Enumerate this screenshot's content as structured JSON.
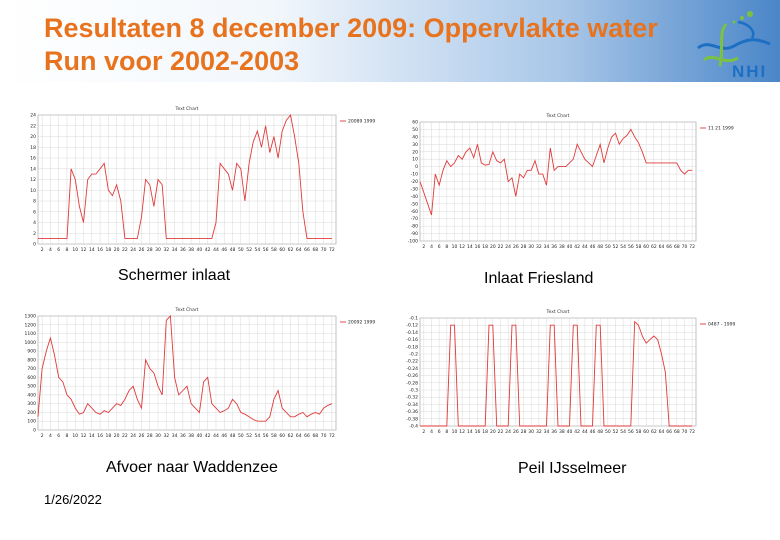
{
  "title": {
    "line1": "Resultaten 8 december 2009: Oppervlakte water",
    "line2": "Run voor 2002-2003"
  },
  "logo": {
    "text": "NHI",
    "icon": "nhi-wave-logo-icon"
  },
  "colors": {
    "title": "#e8731e",
    "series": "#e03a3a",
    "grid": "#d0d0d0",
    "logo": "#1d6fc4",
    "logo_green": "#7cc242"
  },
  "footer": {
    "date": "1/26/2022"
  },
  "chart_data": [
    {
      "id": "schermer",
      "type": "line",
      "caption": "Schermer inlaat",
      "title": "Text Chart",
      "legend": "20089 1999",
      "xlabel": "",
      "ylabel": "",
      "xlim": [
        1,
        73
      ],
      "ylim": [
        0,
        24
      ],
      "x_ticks": [
        2,
        4,
        6,
        8,
        10,
        12,
        14,
        16,
        18,
        20,
        22,
        24,
        26,
        28,
        30,
        32,
        34,
        36,
        38,
        40,
        42,
        44,
        46,
        48,
        50,
        52,
        54,
        56,
        58,
        60,
        62,
        64,
        66,
        68,
        70,
        72
      ],
      "y_ticks": [
        0,
        2,
        4,
        6,
        8,
        10,
        12,
        14,
        16,
        18,
        20,
        22,
        24
      ],
      "series": [
        {
          "name": "20089 1999",
          "x": [
            1,
            8,
            9,
            10,
            11,
            12,
            13,
            14,
            15,
            16,
            17,
            18,
            19,
            20,
            21,
            22,
            23,
            24,
            25,
            26,
            27,
            28,
            29,
            30,
            31,
            32,
            33,
            34,
            35,
            36,
            37,
            38,
            39,
            40,
            41,
            42,
            43,
            44,
            45,
            46,
            47,
            48,
            49,
            50,
            51,
            52,
            53,
            54,
            55,
            56,
            57,
            58,
            59,
            60,
            61,
            62,
            63,
            64,
            65,
            66,
            67,
            68,
            69,
            70,
            71,
            72
          ],
          "y": [
            1,
            1,
            14,
            12,
            7,
            4,
            12,
            13,
            13,
            14,
            15,
            10,
            9,
            11,
            8,
            1,
            1,
            1,
            1,
            5,
            12,
            11,
            7,
            12,
            11,
            1,
            1,
            1,
            1,
            1,
            1,
            1,
            1,
            1,
            1,
            1,
            1,
            4,
            15,
            14,
            13,
            10,
            15,
            14,
            8,
            15,
            19,
            21,
            18,
            22,
            17,
            20,
            16,
            21,
            23,
            24,
            20,
            15,
            6,
            1,
            1,
            1,
            1,
            1,
            1,
            1
          ]
        }
      ]
    },
    {
      "id": "friesland",
      "type": "line",
      "caption": "Inlaat Friesland",
      "title": "Text Chart",
      "legend": "11 21 1999",
      "xlabel": "",
      "ylabel": "",
      "xlim": [
        1,
        73
      ],
      "ylim": [
        -100,
        60
      ],
      "x_ticks": [
        2,
        4,
        6,
        8,
        10,
        12,
        14,
        16,
        18,
        20,
        22,
        24,
        26,
        28,
        30,
        32,
        34,
        36,
        38,
        40,
        42,
        44,
        46,
        48,
        50,
        52,
        54,
        56,
        58,
        60,
        62,
        64,
        66,
        68,
        70,
        72
      ],
      "y_ticks": [
        -100,
        -90,
        -80,
        -70,
        -60,
        -50,
        -40,
        -30,
        -20,
        -10,
        0,
        10,
        20,
        30,
        40,
        50,
        60
      ],
      "series": [
        {
          "name": "11 21 1999",
          "x": [
            1,
            3,
            4,
            5,
            6,
            7,
            8,
            9,
            10,
            11,
            12,
            13,
            14,
            15,
            16,
            17,
            18,
            19,
            20,
            21,
            22,
            23,
            24,
            25,
            26,
            27,
            28,
            29,
            30,
            31,
            32,
            33,
            34,
            35,
            36,
            37,
            38,
            39,
            40,
            41,
            42,
            43,
            44,
            45,
            46,
            47,
            48,
            49,
            50,
            51,
            52,
            53,
            54,
            55,
            56,
            57,
            58,
            59,
            60,
            61,
            62,
            63,
            64,
            65,
            66,
            67,
            68,
            69,
            70,
            71,
            72
          ],
          "y": [
            -20,
            -50,
            -65,
            -10,
            -25,
            -5,
            8,
            0,
            5,
            15,
            10,
            20,
            25,
            12,
            30,
            5,
            2,
            3,
            20,
            8,
            5,
            10,
            -20,
            -15,
            -40,
            -10,
            -15,
            -5,
            -5,
            8,
            -10,
            -10,
            -25,
            25,
            -5,
            0,
            0,
            0,
            5,
            10,
            30,
            20,
            10,
            5,
            0,
            15,
            30,
            5,
            25,
            40,
            45,
            30,
            38,
            42,
            50,
            40,
            32,
            20,
            5,
            5,
            5,
            5,
            5,
            5,
            5,
            5,
            5,
            -5,
            -10,
            -5,
            -5
          ]
        }
      ]
    },
    {
      "id": "waddenzee",
      "type": "line",
      "caption": "Afvoer naar Waddenzee",
      "title": "Text Chart",
      "legend": "20092 1999",
      "xlabel": "",
      "ylabel": "",
      "xlim": [
        1,
        73
      ],
      "ylim": [
        0,
        1300
      ],
      "x_ticks": [
        2,
        4,
        6,
        8,
        10,
        12,
        14,
        16,
        18,
        20,
        22,
        24,
        26,
        28,
        30,
        32,
        34,
        36,
        38,
        40,
        42,
        44,
        46,
        48,
        50,
        52,
        54,
        56,
        58,
        60,
        62,
        64,
        66,
        68,
        70,
        72
      ],
      "y_ticks": [
        0,
        100,
        200,
        300,
        400,
        500,
        600,
        700,
        800,
        900,
        1000,
        1100,
        1200,
        1300
      ],
      "series": [
        {
          "name": "20092 1999",
          "x": [
            1,
            2,
            3,
            4,
            5,
            6,
            7,
            8,
            9,
            10,
            11,
            12,
            13,
            14,
            15,
            16,
            17,
            18,
            19,
            20,
            21,
            22,
            23,
            24,
            25,
            26,
            27,
            28,
            29,
            30,
            31,
            32,
            33,
            34,
            35,
            36,
            37,
            38,
            39,
            40,
            41,
            42,
            43,
            44,
            45,
            46,
            47,
            48,
            49,
            50,
            51,
            52,
            53,
            54,
            55,
            56,
            57,
            58,
            59,
            60,
            61,
            62,
            63,
            64,
            65,
            66,
            67,
            68,
            69,
            70,
            71,
            72
          ],
          "y": [
            150,
            700,
            900,
            1050,
            850,
            600,
            550,
            400,
            350,
            250,
            180,
            200,
            300,
            250,
            200,
            180,
            220,
            200,
            250,
            300,
            280,
            350,
            450,
            500,
            350,
            250,
            800,
            700,
            650,
            500,
            400,
            1250,
            1300,
            600,
            400,
            450,
            500,
            300,
            250,
            200,
            550,
            600,
            300,
            250,
            200,
            220,
            250,
            350,
            300,
            200,
            180,
            150,
            120,
            100,
            100,
            100,
            150,
            350,
            450,
            250,
            200,
            150,
            150,
            180,
            200,
            150,
            180,
            200,
            180,
            250,
            280,
            300
          ]
        }
      ]
    },
    {
      "id": "ijsselmeer",
      "type": "line",
      "caption": "Peil IJsselmeer",
      "title": "Text Chart",
      "legend": "0487 - 1999",
      "xlabel": "",
      "ylabel": "",
      "xlim": [
        1,
        73
      ],
      "ylim": [
        -0.4,
        -0.1
      ],
      "x_ticks": [
        2,
        4,
        6,
        8,
        10,
        12,
        14,
        16,
        18,
        20,
        22,
        24,
        26,
        28,
        30,
        32,
        34,
        36,
        38,
        40,
        42,
        44,
        46,
        48,
        50,
        52,
        54,
        56,
        58,
        60,
        62,
        64,
        66,
        68,
        70,
        72
      ],
      "y_ticks": [
        -0.1,
        -0.12,
        -0.14,
        -0.16,
        -0.18,
        -0.2,
        -0.22,
        -0.24,
        -0.26,
        -0.28,
        -0.3,
        -0.32,
        -0.34,
        -0.36,
        -0.38,
        -0.4
      ],
      "series": [
        {
          "name": "0487 - 1999",
          "x": [
            1,
            8,
            9,
            10,
            11,
            18,
            19,
            20,
            21,
            24,
            25,
            26,
            27,
            34,
            35,
            36,
            37,
            40,
            41,
            42,
            43,
            46,
            47,
            48,
            49,
            56,
            57,
            58,
            59,
            60,
            61,
            62,
            63,
            64,
            65,
            66,
            67,
            72
          ],
          "y": [
            -0.4,
            -0.4,
            -0.12,
            -0.12,
            -0.4,
            -0.4,
            -0.12,
            -0.12,
            -0.4,
            -0.4,
            -0.12,
            -0.12,
            -0.4,
            -0.4,
            -0.12,
            -0.12,
            -0.4,
            -0.4,
            -0.12,
            -0.12,
            -0.4,
            -0.4,
            -0.12,
            -0.12,
            -0.4,
            -0.4,
            -0.11,
            -0.12,
            -0.15,
            -0.17,
            -0.16,
            -0.15,
            -0.16,
            -0.2,
            -0.25,
            -0.4,
            -0.4,
            -0.4
          ]
        }
      ]
    }
  ]
}
